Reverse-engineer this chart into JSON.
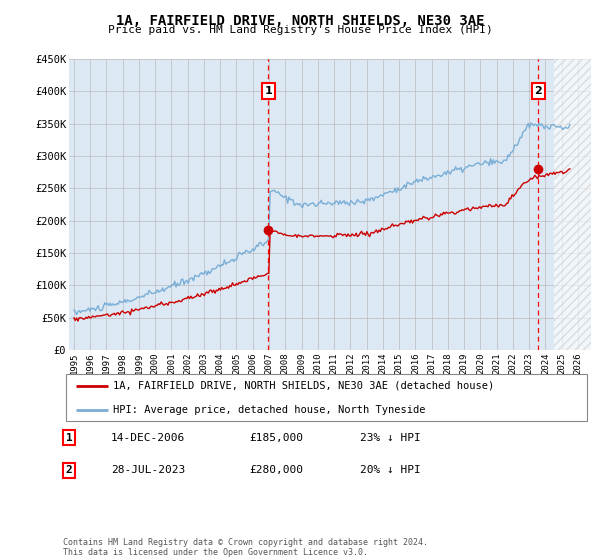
{
  "title": "1A, FAIRFIELD DRIVE, NORTH SHIELDS, NE30 3AE",
  "subtitle": "Price paid vs. HM Land Registry's House Price Index (HPI)",
  "ylim": [
    0,
    450000
  ],
  "yticks": [
    0,
    50000,
    100000,
    150000,
    200000,
    250000,
    300000,
    350000,
    400000,
    450000
  ],
  "ytick_labels": [
    "£0",
    "£50K",
    "£100K",
    "£150K",
    "£200K",
    "£250K",
    "£300K",
    "£350K",
    "£400K",
    "£450K"
  ],
  "xlim_start": 1994.7,
  "xlim_end": 2026.8,
  "marker1_x": 2006.96,
  "marker1_label": "1",
  "marker1_y": 185000,
  "marker2_x": 2023.57,
  "marker2_label": "2",
  "marker2_y": 280000,
  "hatch_start": 2024.5,
  "legend_line1": "1A, FAIRFIELD DRIVE, NORTH SHIELDS, NE30 3AE (detached house)",
  "legend_line2": "HPI: Average price, detached house, North Tyneside",
  "note1_num": "1",
  "note1_date": "14-DEC-2006",
  "note1_price": "£185,000",
  "note1_hpi": "23% ↓ HPI",
  "note2_num": "2",
  "note2_date": "28-JUL-2023",
  "note2_price": "£280,000",
  "note2_hpi": "20% ↓ HPI",
  "footer": "Contains HM Land Registry data © Crown copyright and database right 2024.\nThis data is licensed under the Open Government Licence v3.0.",
  "plot_bg": "#dce9f5",
  "grid_color": "#bbbbbb",
  "red_line_color": "#cc0000",
  "blue_line_color": "#7aaed6",
  "title_fontsize": 10,
  "subtitle_fontsize": 8
}
